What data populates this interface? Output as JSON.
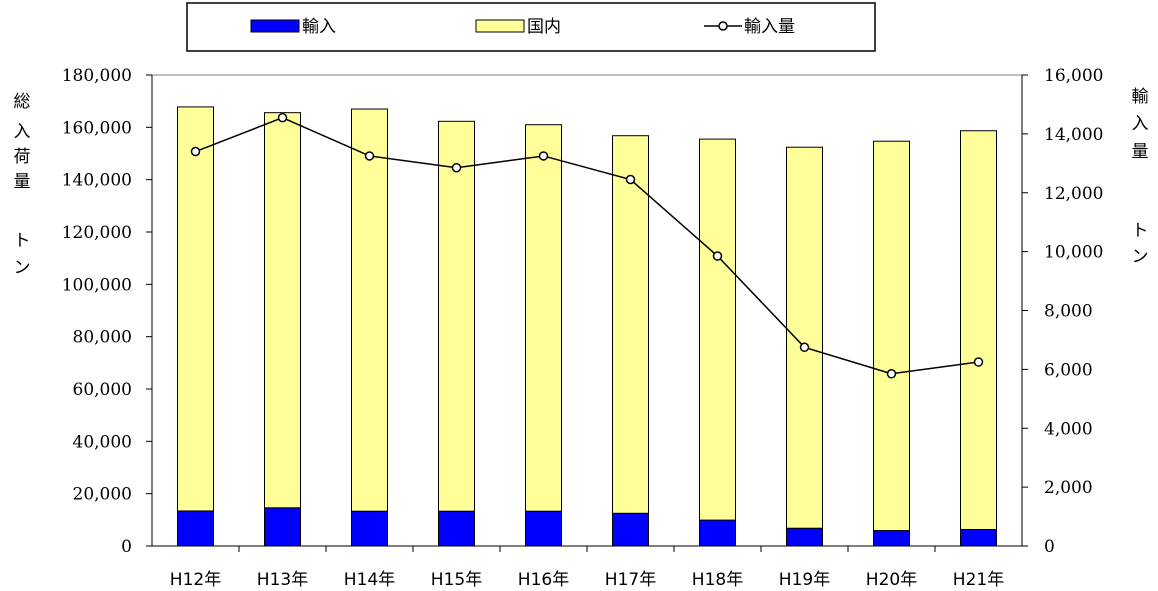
{
  "chart_data": {
    "type": "bar",
    "stacked": true,
    "categories": [
      "H12年",
      "H13年",
      "H14年",
      "H15年",
      "H16年",
      "H17年",
      "H18年",
      "H19年",
      "H20年",
      "H21年"
    ],
    "series": [
      {
        "name": "輸入",
        "type": "bar",
        "axis": "left",
        "color": "#0000ff",
        "values": [
          13400,
          14600,
          13300,
          13300,
          13300,
          12500,
          9900,
          6800,
          5900,
          6300
        ]
      },
      {
        "name": "国内",
        "type": "bar",
        "axis": "left",
        "color": "#ffff99",
        "values": [
          154400,
          151000,
          153700,
          149000,
          147700,
          144300,
          145600,
          145600,
          148800,
          152400
        ]
      },
      {
        "name": "輸入量",
        "type": "line",
        "axis": "right",
        "color": "#000000",
        "marker": "circle",
        "values": [
          13400,
          14550,
          13250,
          12850,
          13250,
          12450,
          9850,
          6750,
          5850,
          6250
        ]
      }
    ],
    "y_left": {
      "label": [
        "総",
        "入",
        "荷",
        "量",
        "ト",
        "ン"
      ],
      "ylim": [
        0,
        180000
      ],
      "ticks": [
        "0",
        "20,000",
        "40,000",
        "60,000",
        "80,000",
        "100,000",
        "120,000",
        "140,000",
        "160,000",
        "180,000"
      ]
    },
    "y_right": {
      "label": [
        "輸",
        "入",
        "量",
        "ト",
        "ン"
      ],
      "ylim": [
        0,
        16000
      ],
      "ticks": [
        "0",
        "2,000",
        "4,000",
        "6,000",
        "8,000",
        "10,000",
        "12,000",
        "14,000",
        "16,000"
      ]
    },
    "legend": {
      "placement": "top-center",
      "items": [
        "輸入",
        "国内",
        "輸入量"
      ]
    },
    "grid": false
  }
}
